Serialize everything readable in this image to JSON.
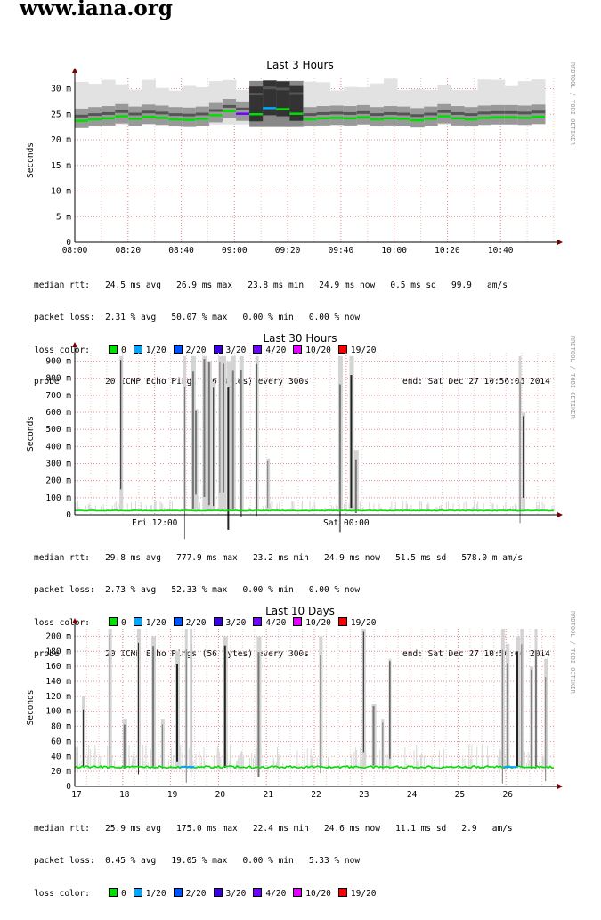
{
  "site_title": "www.iana.org",
  "watermark": "RRDTOOL / TOBI OETIKER",
  "loss_legend": {
    "label": "loss color:",
    "items": [
      {
        "label": "0",
        "color": "#00e000"
      },
      {
        "label": "1/20",
        "color": "#00a7ff"
      },
      {
        "label": "2/20",
        "color": "#0053ff"
      },
      {
        "label": "3/20",
        "color": "#3d00e0"
      },
      {
        "label": "4/20",
        "color": "#7000ff"
      },
      {
        "label": "10/20",
        "color": "#e000ff"
      },
      {
        "label": "19/20",
        "color": "#ff0000"
      }
    ]
  },
  "chart_data": [
    {
      "type": "area",
      "title": "Last 3 Hours",
      "ylabel": "Seconds",
      "ylim": [
        0,
        0.032
      ],
      "yticks": [
        0,
        0.005,
        0.01,
        0.015,
        0.02,
        0.025,
        0.03
      ],
      "ytick_labels": [
        "0",
        "5 m",
        "10 m",
        "15 m",
        "20 m",
        "25 m",
        "30 m"
      ],
      "xlim": [
        0,
        180
      ],
      "xticks": [
        0,
        20,
        40,
        60,
        80,
        100,
        120,
        140,
        160
      ],
      "xtick_labels": [
        "08:00",
        "08:20",
        "08:40",
        "09:00",
        "09:20",
        "09:40",
        "10:00",
        "10:20",
        "10:40"
      ],
      "median_rtt_ms": [
        23.7,
        24.0,
        24.2,
        24.6,
        24.1,
        24.5,
        24.3,
        24.0,
        23.9,
        24.1,
        24.8,
        25.6,
        25.1,
        25.0,
        26.2,
        26.0,
        25.1,
        24.0,
        24.2,
        24.3,
        24.2,
        24.4,
        24.0,
        24.2,
        24.1,
        23.8,
        24.1,
        24.6,
        24.2,
        24.0,
        24.3,
        24.4,
        24.4,
        24.3,
        24.5
      ],
      "stats": {
        "median_line": "median rtt:   24.5 ms avg   26.9 ms max   23.8 ms min   24.9 ms now   0.5 ms sd   99.9   am/s",
        "loss_line": "packet loss:  2.31 % avg   50.07 % max   0.00 % min   0.00 % now",
        "probe_line": "probe         20 ICMP Echo Pings (56 Bytes) every 300s",
        "end_line": "end: Sat Dec 27 10:56:06 2014"
      }
    },
    {
      "type": "area",
      "title": "Last 30 Hours",
      "ylabel": "Seconds",
      "ylim": [
        0,
        0.95
      ],
      "yticks": [
        0,
        0.1,
        0.2,
        0.3,
        0.4,
        0.5,
        0.6,
        0.7,
        0.8,
        0.9
      ],
      "ytick_labels": [
        "0",
        "100 m",
        "200 m",
        "300 m",
        "400 m",
        "500 m",
        "600 m",
        "700 m",
        "800 m",
        "900 m"
      ],
      "xlim": [
        0,
        30
      ],
      "xticks": [
        5,
        17
      ],
      "xtick_labels": [
        "Fri 12:00",
        "Sat 00:00"
      ],
      "median_rtt_ms": 24.9,
      "spikes_ms": [
        [
          2.8,
          930
        ],
        [
          6.8,
          930
        ],
        [
          7.3,
          930
        ],
        [
          7.5,
          620
        ],
        [
          8.0,
          930
        ],
        [
          8.3,
          900
        ],
        [
          8.6,
          780
        ],
        [
          9.0,
          930
        ],
        [
          9.2,
          930
        ],
        [
          9.5,
          900
        ],
        [
          9.8,
          930
        ],
        [
          10.3,
          930
        ],
        [
          11.3,
          930
        ],
        [
          12.0,
          330
        ],
        [
          16.5,
          930
        ],
        [
          17.2,
          930
        ],
        [
          17.5,
          380
        ],
        [
          27.8,
          930
        ],
        [
          28.0,
          600
        ]
      ],
      "stats": {
        "median_line": "median rtt:   29.8 ms avg   777.9 ms max   23.2 ms min   24.9 ms now   51.5 ms sd   578.0 m am/s",
        "loss_line": "packet loss:  2.73 % avg   52.33 % max   0.00 % min   0.00 % now",
        "probe_line": "probe         20 ICMP Echo Pings (56 Bytes) every 300s",
        "end_line": "end: Sat Dec 27 10:56:06 2014"
      }
    },
    {
      "type": "area",
      "title": "Last 10 Days",
      "ylabel": "Seconds",
      "ylim": [
        0,
        0.21
      ],
      "yticks": [
        0,
        0.02,
        0.04,
        0.06,
        0.08,
        0.1,
        0.12,
        0.14,
        0.16,
        0.18,
        0.2
      ],
      "ytick_labels": [
        "0",
        "20 m",
        "40 m",
        "60 m",
        "80 m",
        "100 m",
        "120 m",
        "140 m",
        "160 m",
        "180 m",
        "200 m"
      ],
      "xlim": [
        0,
        10
      ],
      "xticks": [
        0,
        1,
        2,
        3,
        4,
        5,
        6,
        7,
        8,
        9
      ],
      "xtick_labels": [
        "17",
        "18",
        "19",
        "20",
        "21",
        "22",
        "23",
        "24",
        "25",
        "26"
      ],
      "median_rtt_ms": 25.9,
      "spikes_ms": [
        [
          0.15,
          120
        ],
        [
          0.7,
          210
        ],
        [
          1.0,
          90
        ],
        [
          1.3,
          210
        ],
        [
          1.6,
          200
        ],
        [
          1.8,
          90
        ],
        [
          2.1,
          180
        ],
        [
          2.3,
          210
        ],
        [
          2.4,
          210
        ],
        [
          3.1,
          200
        ],
        [
          3.8,
          200
        ],
        [
          5.1,
          200
        ],
        [
          6.0,
          210
        ],
        [
          6.2,
          110
        ],
        [
          6.4,
          90
        ],
        [
          6.55,
          170
        ],
        [
          8.9,
          210
        ],
        [
          9.0,
          190
        ],
        [
          9.2,
          200
        ],
        [
          9.3,
          210
        ],
        [
          9.5,
          160
        ],
        [
          9.6,
          210
        ],
        [
          9.8,
          170
        ]
      ],
      "stats": {
        "median_line": "median rtt:   25.9 ms avg   175.0 ms max   22.4 ms min   24.6 ms now   11.1 ms sd   2.9   am/s",
        "loss_line": "packet loss:  0.45 % avg   19.05 % max   0.00 % min   5.33 % now"
      }
    }
  ]
}
